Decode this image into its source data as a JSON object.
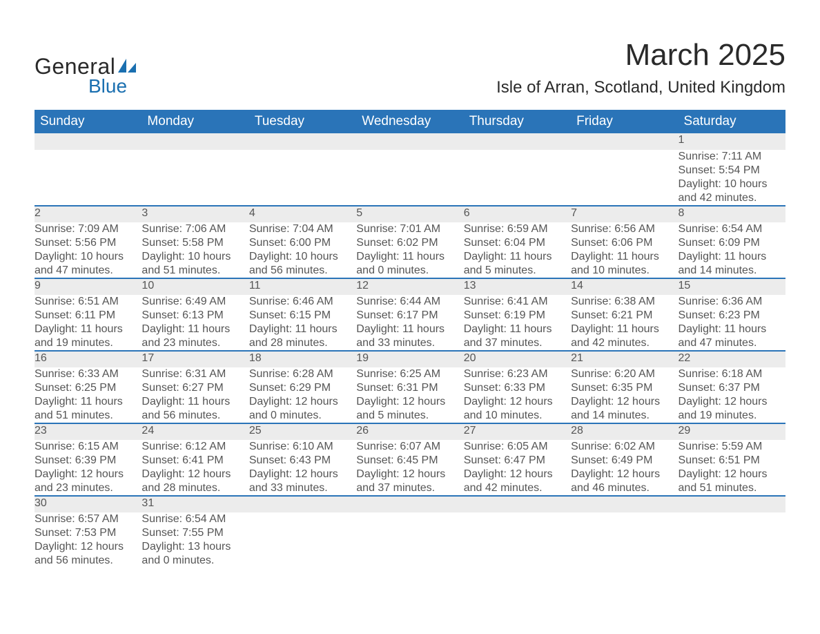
{
  "logo": {
    "text1": "General",
    "text2": "Blue",
    "sail_color": "#1a6fb0"
  },
  "title": "March 2025",
  "location": "Isle of Arran, Scotland, United Kingdom",
  "colors": {
    "header_bg": "#2a74b8",
    "header_text": "#ffffff",
    "row_border": "#2a74b8",
    "daynum_bg": "#ececec",
    "text": "#555555"
  },
  "weekdays": [
    "Sunday",
    "Monday",
    "Tuesday",
    "Wednesday",
    "Thursday",
    "Friday",
    "Saturday"
  ],
  "weeks": [
    [
      null,
      null,
      null,
      null,
      null,
      null,
      {
        "n": "1",
        "sr": "Sunrise: 7:11 AM",
        "ss": "Sunset: 5:54 PM",
        "d1": "Daylight: 10 hours",
        "d2": "and 42 minutes."
      }
    ],
    [
      {
        "n": "2",
        "sr": "Sunrise: 7:09 AM",
        "ss": "Sunset: 5:56 PM",
        "d1": "Daylight: 10 hours",
        "d2": "and 47 minutes."
      },
      {
        "n": "3",
        "sr": "Sunrise: 7:06 AM",
        "ss": "Sunset: 5:58 PM",
        "d1": "Daylight: 10 hours",
        "d2": "and 51 minutes."
      },
      {
        "n": "4",
        "sr": "Sunrise: 7:04 AM",
        "ss": "Sunset: 6:00 PM",
        "d1": "Daylight: 10 hours",
        "d2": "and 56 minutes."
      },
      {
        "n": "5",
        "sr": "Sunrise: 7:01 AM",
        "ss": "Sunset: 6:02 PM",
        "d1": "Daylight: 11 hours",
        "d2": "and 0 minutes."
      },
      {
        "n": "6",
        "sr": "Sunrise: 6:59 AM",
        "ss": "Sunset: 6:04 PM",
        "d1": "Daylight: 11 hours",
        "d2": "and 5 minutes."
      },
      {
        "n": "7",
        "sr": "Sunrise: 6:56 AM",
        "ss": "Sunset: 6:06 PM",
        "d1": "Daylight: 11 hours",
        "d2": "and 10 minutes."
      },
      {
        "n": "8",
        "sr": "Sunrise: 6:54 AM",
        "ss": "Sunset: 6:09 PM",
        "d1": "Daylight: 11 hours",
        "d2": "and 14 minutes."
      }
    ],
    [
      {
        "n": "9",
        "sr": "Sunrise: 6:51 AM",
        "ss": "Sunset: 6:11 PM",
        "d1": "Daylight: 11 hours",
        "d2": "and 19 minutes."
      },
      {
        "n": "10",
        "sr": "Sunrise: 6:49 AM",
        "ss": "Sunset: 6:13 PM",
        "d1": "Daylight: 11 hours",
        "d2": "and 23 minutes."
      },
      {
        "n": "11",
        "sr": "Sunrise: 6:46 AM",
        "ss": "Sunset: 6:15 PM",
        "d1": "Daylight: 11 hours",
        "d2": "and 28 minutes."
      },
      {
        "n": "12",
        "sr": "Sunrise: 6:44 AM",
        "ss": "Sunset: 6:17 PM",
        "d1": "Daylight: 11 hours",
        "d2": "and 33 minutes."
      },
      {
        "n": "13",
        "sr": "Sunrise: 6:41 AM",
        "ss": "Sunset: 6:19 PM",
        "d1": "Daylight: 11 hours",
        "d2": "and 37 minutes."
      },
      {
        "n": "14",
        "sr": "Sunrise: 6:38 AM",
        "ss": "Sunset: 6:21 PM",
        "d1": "Daylight: 11 hours",
        "d2": "and 42 minutes."
      },
      {
        "n": "15",
        "sr": "Sunrise: 6:36 AM",
        "ss": "Sunset: 6:23 PM",
        "d1": "Daylight: 11 hours",
        "d2": "and 47 minutes."
      }
    ],
    [
      {
        "n": "16",
        "sr": "Sunrise: 6:33 AM",
        "ss": "Sunset: 6:25 PM",
        "d1": "Daylight: 11 hours",
        "d2": "and 51 minutes."
      },
      {
        "n": "17",
        "sr": "Sunrise: 6:31 AM",
        "ss": "Sunset: 6:27 PM",
        "d1": "Daylight: 11 hours",
        "d2": "and 56 minutes."
      },
      {
        "n": "18",
        "sr": "Sunrise: 6:28 AM",
        "ss": "Sunset: 6:29 PM",
        "d1": "Daylight: 12 hours",
        "d2": "and 0 minutes."
      },
      {
        "n": "19",
        "sr": "Sunrise: 6:25 AM",
        "ss": "Sunset: 6:31 PM",
        "d1": "Daylight: 12 hours",
        "d2": "and 5 minutes."
      },
      {
        "n": "20",
        "sr": "Sunrise: 6:23 AM",
        "ss": "Sunset: 6:33 PM",
        "d1": "Daylight: 12 hours",
        "d2": "and 10 minutes."
      },
      {
        "n": "21",
        "sr": "Sunrise: 6:20 AM",
        "ss": "Sunset: 6:35 PM",
        "d1": "Daylight: 12 hours",
        "d2": "and 14 minutes."
      },
      {
        "n": "22",
        "sr": "Sunrise: 6:18 AM",
        "ss": "Sunset: 6:37 PM",
        "d1": "Daylight: 12 hours",
        "d2": "and 19 minutes."
      }
    ],
    [
      {
        "n": "23",
        "sr": "Sunrise: 6:15 AM",
        "ss": "Sunset: 6:39 PM",
        "d1": "Daylight: 12 hours",
        "d2": "and 23 minutes."
      },
      {
        "n": "24",
        "sr": "Sunrise: 6:12 AM",
        "ss": "Sunset: 6:41 PM",
        "d1": "Daylight: 12 hours",
        "d2": "and 28 minutes."
      },
      {
        "n": "25",
        "sr": "Sunrise: 6:10 AM",
        "ss": "Sunset: 6:43 PM",
        "d1": "Daylight: 12 hours",
        "d2": "and 33 minutes."
      },
      {
        "n": "26",
        "sr": "Sunrise: 6:07 AM",
        "ss": "Sunset: 6:45 PM",
        "d1": "Daylight: 12 hours",
        "d2": "and 37 minutes."
      },
      {
        "n": "27",
        "sr": "Sunrise: 6:05 AM",
        "ss": "Sunset: 6:47 PM",
        "d1": "Daylight: 12 hours",
        "d2": "and 42 minutes."
      },
      {
        "n": "28",
        "sr": "Sunrise: 6:02 AM",
        "ss": "Sunset: 6:49 PM",
        "d1": "Daylight: 12 hours",
        "d2": "and 46 minutes."
      },
      {
        "n": "29",
        "sr": "Sunrise: 5:59 AM",
        "ss": "Sunset: 6:51 PM",
        "d1": "Daylight: 12 hours",
        "d2": "and 51 minutes."
      }
    ],
    [
      {
        "n": "30",
        "sr": "Sunrise: 6:57 AM",
        "ss": "Sunset: 7:53 PM",
        "d1": "Daylight: 12 hours",
        "d2": "and 56 minutes."
      },
      {
        "n": "31",
        "sr": "Sunrise: 6:54 AM",
        "ss": "Sunset: 7:55 PM",
        "d1": "Daylight: 13 hours",
        "d2": "and 0 minutes."
      },
      null,
      null,
      null,
      null,
      null
    ]
  ]
}
